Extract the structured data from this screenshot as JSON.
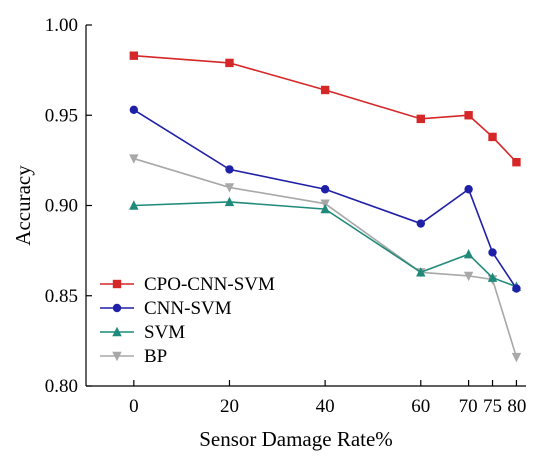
{
  "chart_data": {
    "type": "line",
    "xlabel": "Sensor Damage Rate%",
    "ylabel": "Accuracy",
    "x_ticks": [
      0,
      20,
      40,
      60,
      70,
      75,
      80
    ],
    "y_ticks": [
      "0.80",
      "0.85",
      "0.90",
      "0.95",
      "1.00"
    ],
    "xlim": [
      -10,
      82
    ],
    "ylim": [
      0.8,
      1.0
    ],
    "x": [
      0,
      20,
      40,
      60,
      70,
      75,
      80
    ],
    "series": [
      {
        "name": "CPO-CNN-SVM",
        "color": "#d62728",
        "marker": "square",
        "values": [
          0.983,
          0.979,
          0.964,
          0.948,
          0.95,
          0.938,
          0.924
        ]
      },
      {
        "name": "CNN-SVM",
        "color": "#1f1fa8",
        "marker": "circle",
        "values": [
          0.953,
          0.92,
          0.909,
          0.89,
          0.909,
          0.874,
          0.854
        ]
      },
      {
        "name": "SVM",
        "color": "#1f8a7a",
        "marker": "triangle-up",
        "values": [
          0.9,
          0.902,
          0.898,
          0.863,
          0.873,
          0.86,
          0.855
        ]
      },
      {
        "name": "BP",
        "color": "#a8a8a8",
        "marker": "triangle-down",
        "values": [
          0.926,
          0.91,
          0.901,
          0.863,
          0.861,
          0.859,
          0.816
        ]
      }
    ],
    "legend_position": "bottom-left",
    "grid": false
  }
}
